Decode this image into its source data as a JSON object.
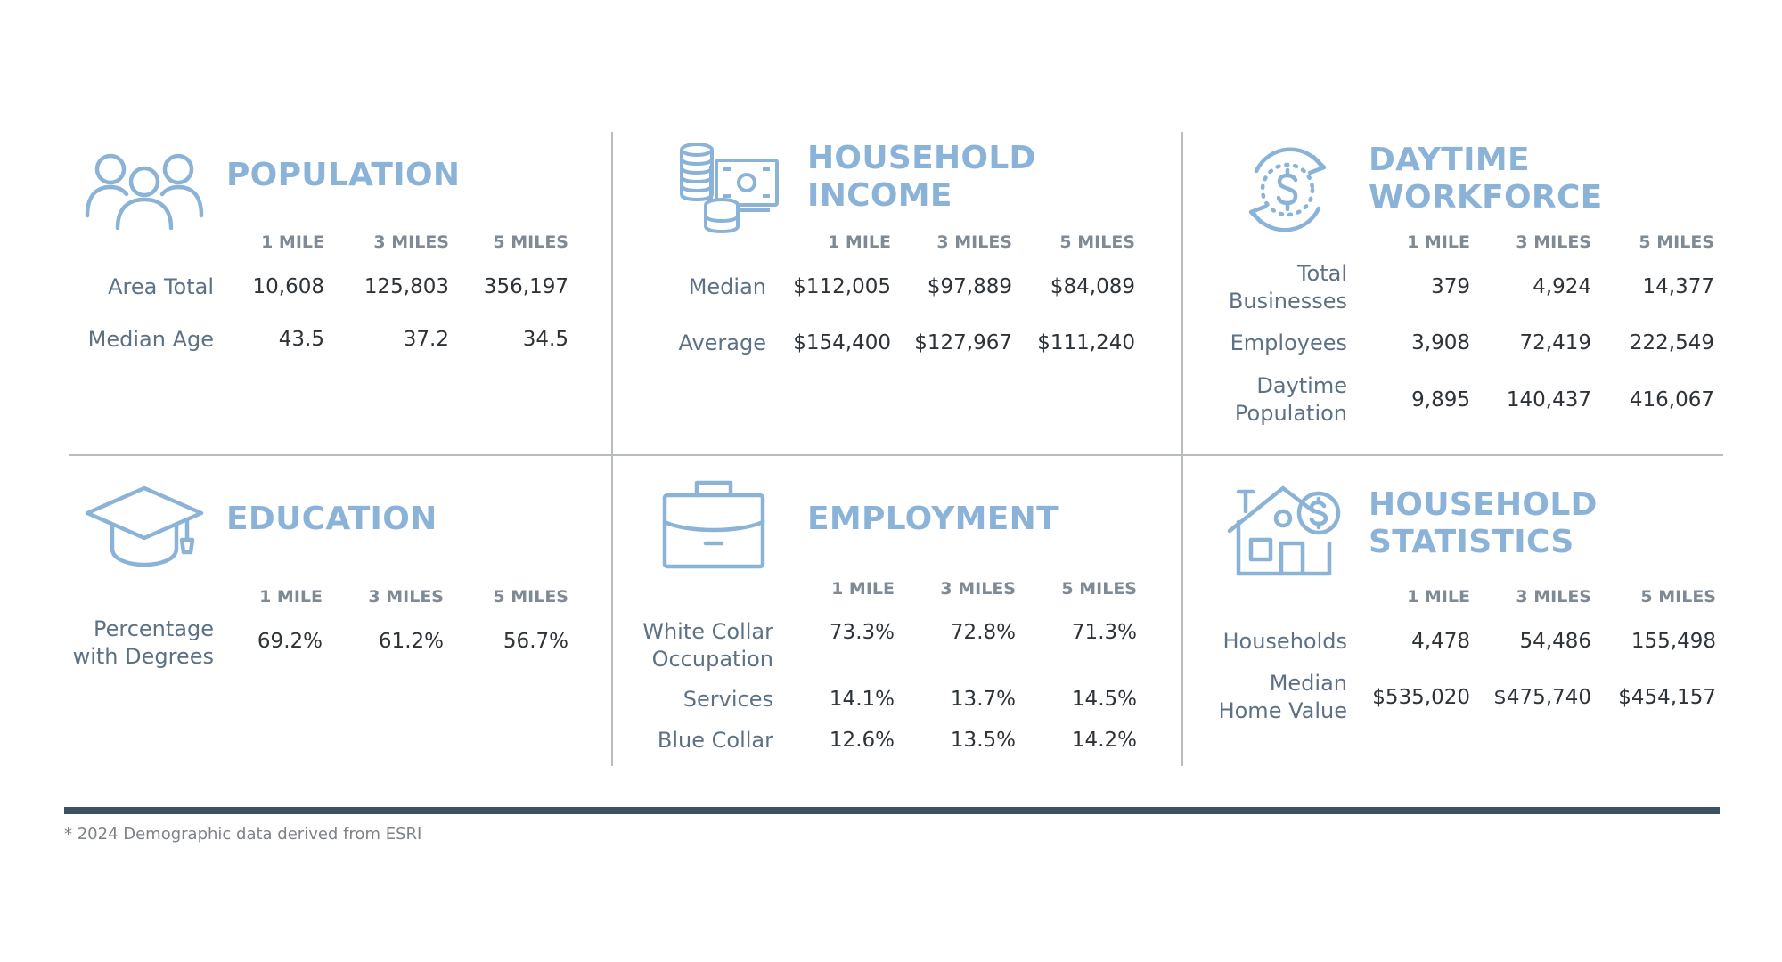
{
  "footnote": "* 2024 Demographic data derived from ESRI",
  "colors": {
    "accent": "#8bb3d8",
    "label": "#5d7185",
    "value": "#2e3338",
    "rule": "#3d5166"
  },
  "columns": [
    "1 MILE",
    "3 MILES",
    "5 MILES"
  ],
  "panels": {
    "population": {
      "icon": "people-icon",
      "title_line1": "POPULATION",
      "rows": [
        {
          "label": "Area Total",
          "values": [
            "10,608",
            "125,803",
            "356,197"
          ]
        },
        {
          "label": "Median Age",
          "values": [
            "43.5",
            "37.2",
            "34.5"
          ]
        }
      ]
    },
    "household_income": {
      "icon": "coins-cash-icon",
      "title_line1": "HOUSEHOLD",
      "title_line2": "INCOME",
      "rows": [
        {
          "label": "Median",
          "values": [
            "$112,005",
            "$97,889",
            "$84,089"
          ]
        },
        {
          "label": "Average",
          "values": [
            "$154,400",
            "$127,967",
            "$111,240"
          ]
        }
      ]
    },
    "daytime_workforce": {
      "icon": "dollar-cycle-icon",
      "title_line1": "DAYTIME",
      "title_line2": "WORKFORCE",
      "rows": [
        {
          "label_line1": "Total",
          "label_line2": "Businesses",
          "values": [
            "379",
            "4,924",
            "14,377"
          ]
        },
        {
          "label": "Employees",
          "values": [
            "3,908",
            "72,419",
            "222,549"
          ]
        },
        {
          "label_line1": "Daytime",
          "label_line2": "Population",
          "values": [
            "9,895",
            "140,437",
            "416,067"
          ]
        }
      ]
    },
    "education": {
      "icon": "graduation-cap-icon",
      "title_line1": "EDUCATION",
      "rows": [
        {
          "label_line1": "Percentage",
          "label_line2": "with Degrees",
          "values": [
            "69.2%",
            "61.2%",
            "56.7%"
          ]
        }
      ]
    },
    "employment": {
      "icon": "briefcase-icon",
      "title_line1": "EMPLOYMENT",
      "rows": [
        {
          "label_line1": "White Collar",
          "label_line2": "Occupation",
          "values": [
            "73.3%",
            "72.8%",
            "71.3%"
          ]
        },
        {
          "label": "Services",
          "values": [
            "14.1%",
            "13.7%",
            "14.5%"
          ]
        },
        {
          "label": "Blue Collar",
          "values": [
            "12.6%",
            "13.5%",
            "14.2%"
          ]
        }
      ]
    },
    "household_statistics": {
      "icon": "house-dollar-icon",
      "title_line1": "HOUSEHOLD",
      "title_line2": "STATISTICS",
      "rows": [
        {
          "label": "Households",
          "values": [
            "4,478",
            "54,486",
            "155,498"
          ]
        },
        {
          "label_line1": "Median",
          "label_line2": "Home Value",
          "values": [
            "$535,020",
            "$475,740",
            "$454,157"
          ]
        }
      ]
    }
  }
}
